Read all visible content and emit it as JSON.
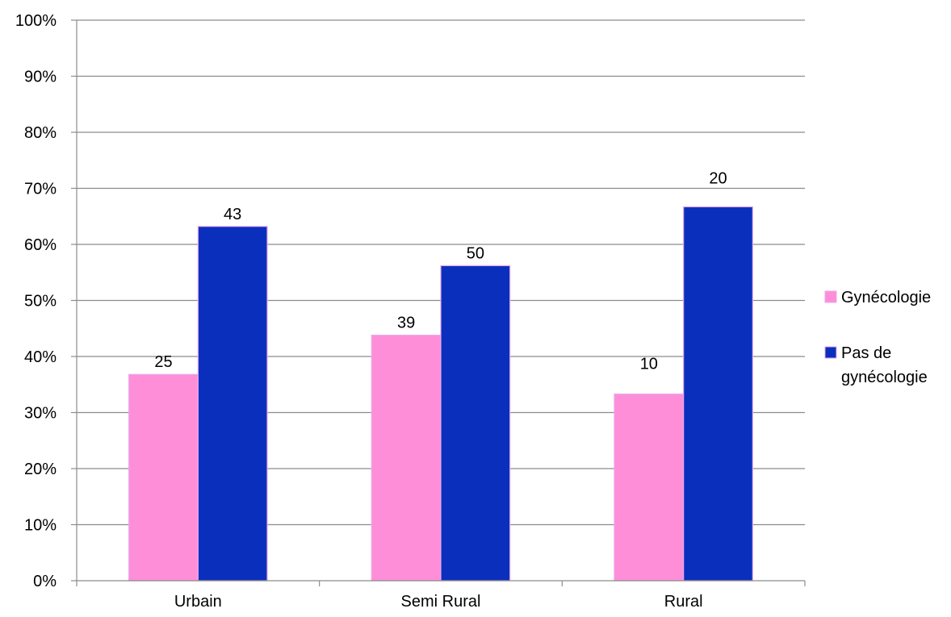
{
  "chart_data": {
    "type": "bar",
    "categories": [
      "Urbain",
      "Semi Rural",
      "Rural"
    ],
    "series": [
      {
        "name": "Gynécologie",
        "color": "#ff8ed8",
        "values": [
          36.8,
          43.8,
          33.3
        ],
        "labels": [
          "25",
          "39",
          "10"
        ]
      },
      {
        "name": "Pas de gynécologie",
        "name_lines": [
          "Pas de",
          "gynécologie"
        ],
        "color": "#0b2fbd",
        "values": [
          63.2,
          56.2,
          66.7
        ],
        "labels": [
          "43",
          "50",
          "20"
        ]
      }
    ],
    "title": "",
    "xlabel": "",
    "ylabel": "",
    "ylim": [
      0,
      100
    ],
    "yticks": [
      "0%",
      "10%",
      "20%",
      "30%",
      "40%",
      "50%",
      "60%",
      "70%",
      "80%",
      "90%",
      "100%"
    ],
    "grid": true,
    "legend": "right"
  }
}
